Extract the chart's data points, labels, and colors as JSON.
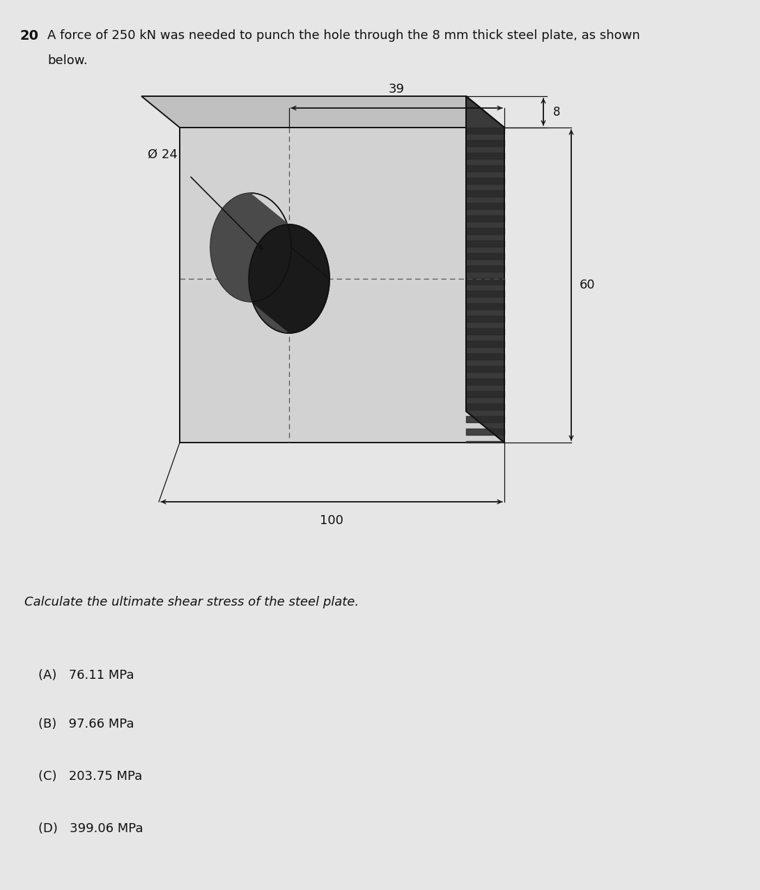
{
  "title_num": "20",
  "title_line1": "A force of 250 kN was needed to punch the hole through the 8 mm thick steel plate, as shown",
  "title_line2": "below.",
  "question": "Calculate the ultimate shear stress of the steel plate.",
  "options": [
    "(A)   76.11 MPa",
    "(B)   97.66 MPa",
    "(C)   203.75 MPa",
    "(D)   399.06 MPa"
  ],
  "dim_diameter": "Ø 24",
  "dim_39": "39",
  "dim_100": "100",
  "dim_60": "60",
  "dim_8": "8",
  "bg_color": "#e6e6e6",
  "front_face_color": "#d0d0d0",
  "top_face_color": "#c0c0c0",
  "right_face_color": "#3a3a3a",
  "hole_dark_color": "#2a2a2a",
  "text_color": "#111111",
  "line_color": "#111111",
  "ghost_text_color": "#bbbbbb"
}
